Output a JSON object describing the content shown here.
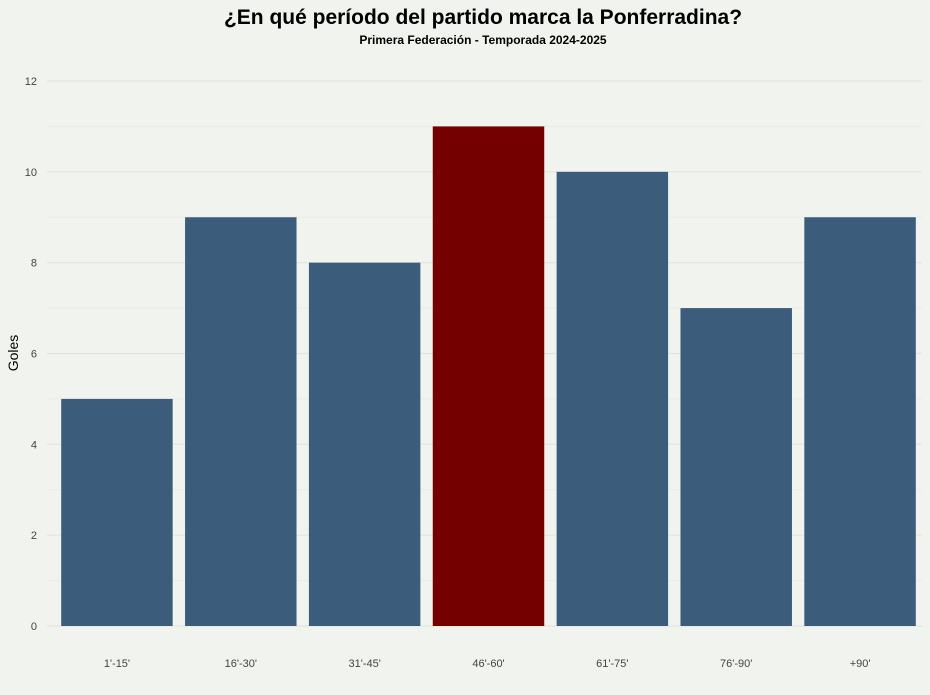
{
  "chart_data": {
    "type": "bar",
    "title": "¿En qué período del partido marca la Ponferradina?",
    "subtitle": "Primera Federación - Temporada 2024-2025",
    "xlabel": "",
    "ylabel": "Goles",
    "categories": [
      "1'-15'",
      "16'-30'",
      "31'-45'",
      "46'-60'",
      "61'-75'",
      "76'-90'",
      "+90'"
    ],
    "values": [
      5,
      9,
      8,
      11,
      10,
      7,
      9
    ],
    "highlight_index": 3,
    "colors": {
      "default": "#3b5c7a",
      "highlight": "#750000",
      "background": "#f1f3ee"
    },
    "ylim": [
      0,
      12
    ],
    "yticks": [
      0,
      2,
      4,
      6,
      8,
      10,
      12
    ],
    "grid": true,
    "legend": "none"
  }
}
